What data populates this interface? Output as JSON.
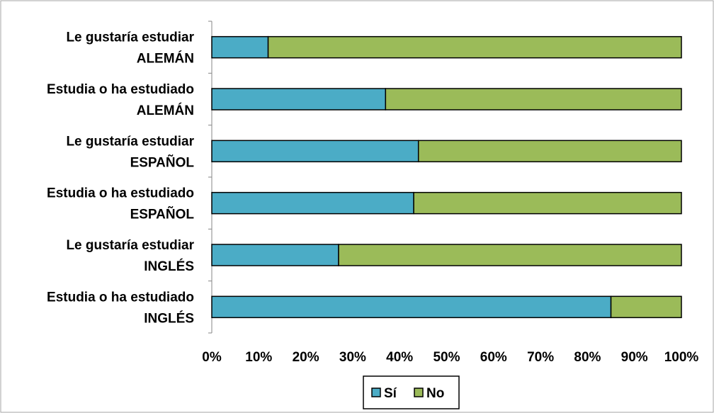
{
  "chart_data": {
    "type": "bar",
    "orientation": "horizontal",
    "stacked": "percent",
    "categories": [
      [
        "Le gustaría estudiar",
        "ALEMÁN"
      ],
      [
        "Estudia o ha estudiado",
        "ALEMÁN"
      ],
      [
        "Le gustaría estudiar",
        "ESPAÑOL"
      ],
      [
        "Estudia o ha estudiado",
        "ESPAÑOL"
      ],
      [
        "Le gustaría estudiar",
        "INGLÉS"
      ],
      [
        "Estudia o ha estudiado",
        "INGLÉS"
      ]
    ],
    "series": [
      {
        "name": "Sí",
        "color": "#4bacc6",
        "values": [
          12,
          37,
          44,
          43,
          27,
          85
        ]
      },
      {
        "name": "No",
        "color": "#9bbb59",
        "values": [
          88,
          63,
          56,
          57,
          73,
          15
        ]
      }
    ],
    "xlim": [
      0,
      100
    ],
    "xticks": [
      "0%",
      "10%",
      "20%",
      "30%",
      "40%",
      "50%",
      "60%",
      "70%",
      "80%",
      "90%",
      "100%"
    ],
    "grid": false,
    "legend_position": "bottom"
  }
}
